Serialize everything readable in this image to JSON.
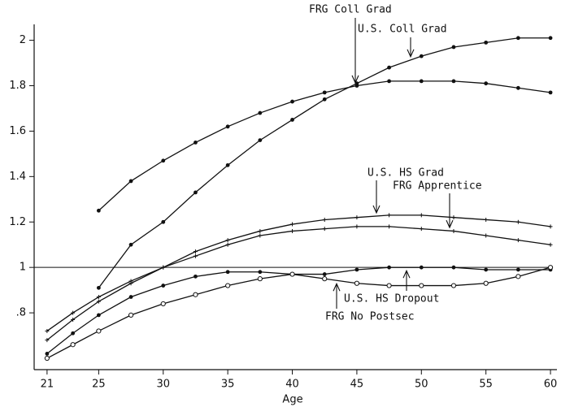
{
  "chart_data": {
    "type": "line",
    "xlabel": "Age",
    "x": [
      21,
      23,
      25,
      27.5,
      30,
      32.5,
      35,
      37.5,
      40,
      42.5,
      45,
      47.5,
      50,
      52.5,
      55,
      57.5,
      60
    ],
    "series": [
      {
        "name": "FRG Coll Grad",
        "color": "#111111",
        "marker": "dot",
        "values": [
          null,
          null,
          1.25,
          1.38,
          1.47,
          1.55,
          1.62,
          1.68,
          1.73,
          1.77,
          1.8,
          1.82,
          1.82,
          1.82,
          1.81,
          1.79,
          1.77
        ]
      },
      {
        "name": "U.S. Coll Grad",
        "color": "#111111",
        "marker": "dot",
        "values": [
          null,
          null,
          0.91,
          1.1,
          1.2,
          1.33,
          1.45,
          1.56,
          1.65,
          1.74,
          1.81,
          1.88,
          1.93,
          1.97,
          1.99,
          2.01,
          2.01
        ]
      },
      {
        "name": "U.S. HS Grad",
        "color": "#111111",
        "marker": "plus",
        "values": [
          0.72,
          0.8,
          0.87,
          0.94,
          1.0,
          1.07,
          1.12,
          1.16,
          1.19,
          1.21,
          1.22,
          1.23,
          1.23,
          1.22,
          1.21,
          1.2,
          1.18
        ]
      },
      {
        "name": "FRG Apprentice",
        "color": "#111111",
        "marker": "plus",
        "values": [
          0.68,
          0.77,
          0.85,
          0.93,
          1.0,
          1.05,
          1.1,
          1.14,
          1.16,
          1.17,
          1.18,
          1.18,
          1.17,
          1.16,
          1.14,
          1.12,
          1.1
        ]
      },
      {
        "name": "U.S. HS Dropout",
        "color": "#111111",
        "marker": "dot",
        "values": [
          0.62,
          0.71,
          0.79,
          0.87,
          0.92,
          0.96,
          0.98,
          0.98,
          0.97,
          0.97,
          0.99,
          1.0,
          1.0,
          1.0,
          0.99,
          0.99,
          0.99
        ]
      },
      {
        "name": "FRG No Postsec",
        "color": "#111111",
        "marker": "circle",
        "values": [
          0.6,
          0.66,
          0.72,
          0.79,
          0.84,
          0.88,
          0.92,
          0.95,
          0.97,
          0.95,
          0.93,
          0.92,
          0.92,
          0.92,
          0.93,
          0.96,
          1.0
        ]
      }
    ],
    "reference_line": 1,
    "xlim": [
      20,
      60.5
    ],
    "xticks": [
      21,
      25,
      30,
      35,
      40,
      45,
      50,
      55,
      60
    ],
    "ylim": [
      0.55,
      2.07
    ],
    "yticks": [
      {
        "value": 0.8,
        "label": ".8"
      },
      1,
      1.2,
      1.4,
      1.6,
      1.8,
      2
    ]
  }
}
